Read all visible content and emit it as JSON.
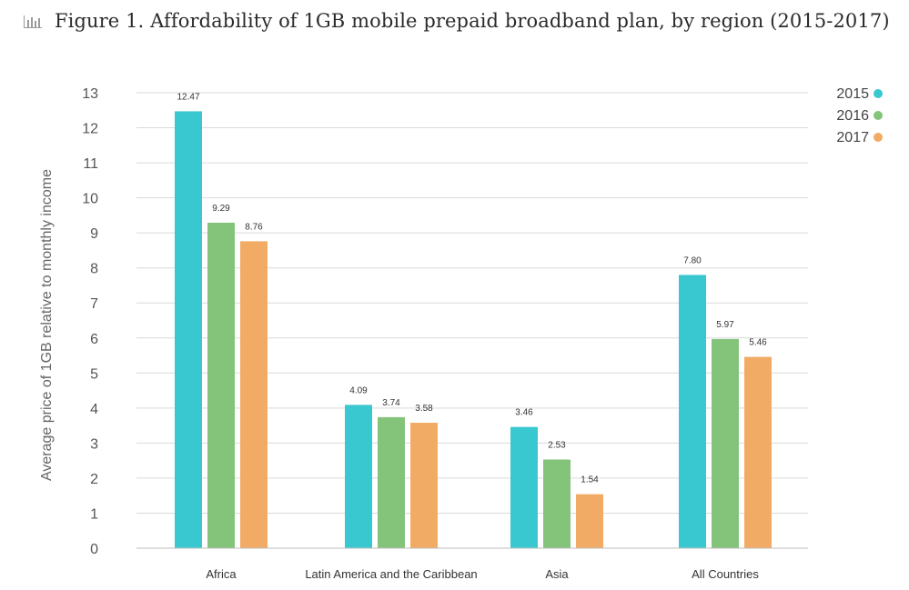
{
  "header": {
    "title": "Figure 1. Affordability of 1GB mobile prepaid broadband plan, by region (2015-2017)",
    "icon": "bar-chart-icon"
  },
  "chart_data": {
    "type": "bar",
    "title": "Figure 1. Affordability of 1GB mobile prepaid broadband plan, by region (2015-2017)",
    "xlabel": "",
    "ylabel": "Average price of 1GB relative to monthly income",
    "ylim": [
      0,
      13
    ],
    "yticks": [
      "0",
      "1",
      "2",
      "3",
      "4",
      "5",
      "6",
      "7",
      "8",
      "9",
      "10",
      "11",
      "12",
      "13"
    ],
    "grid": true,
    "legend_position": "top-right",
    "categories": [
      "Africa",
      "Latin America and the Caribbean",
      "Asia",
      "All Countries"
    ],
    "series": [
      {
        "name": "2015",
        "color": "#39c8cf",
        "values": [
          12.47,
          4.09,
          3.46,
          7.8
        ],
        "labels": [
          "12.47",
          "4.09",
          "3.46",
          "7.80"
        ]
      },
      {
        "name": "2016",
        "color": "#84c47a",
        "values": [
          9.29,
          3.74,
          2.53,
          5.97
        ],
        "labels": [
          "9.29",
          "3.74",
          "2.53",
          "5.97"
        ]
      },
      {
        "name": "2017",
        "color": "#f2ab64",
        "values": [
          8.76,
          3.58,
          1.54,
          5.46
        ],
        "labels": [
          "8.76",
          "3.58",
          "1.54",
          "5.46"
        ]
      }
    ]
  }
}
